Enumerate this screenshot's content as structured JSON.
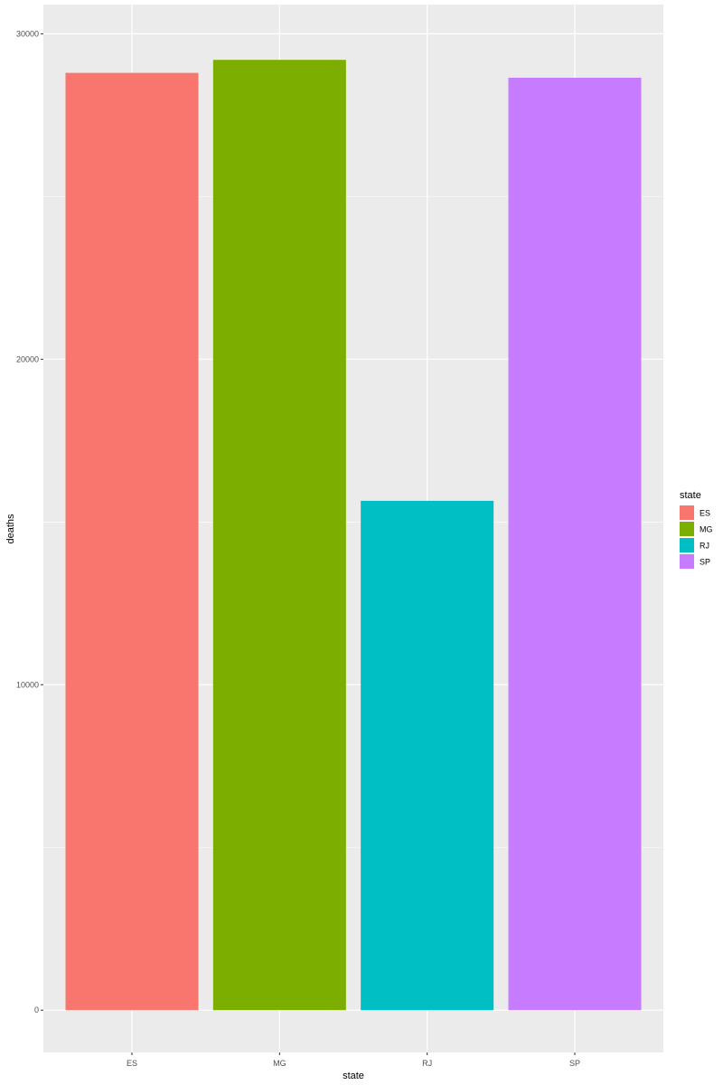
{
  "chart_data": {
    "type": "bar",
    "categories": [
      "ES",
      "MG",
      "RJ",
      "SP"
    ],
    "values": [
      28800,
      29200,
      15650,
      28650
    ],
    "colors": [
      "#F8766D",
      "#7CAE00",
      "#00BFC4",
      "#C77CFF"
    ],
    "xlabel": "state",
    "ylabel": "deaths",
    "ylim": [
      -1300,
      30900
    ],
    "yticks": [
      0,
      10000,
      20000,
      30000
    ],
    "ytick_labels": [
      "0",
      "10000",
      "20000",
      "30000"
    ],
    "grid": true,
    "background": "#EBEBEB",
    "legend": {
      "title": "state",
      "position": "right",
      "items": [
        "ES",
        "MG",
        "RJ",
        "SP"
      ]
    }
  }
}
